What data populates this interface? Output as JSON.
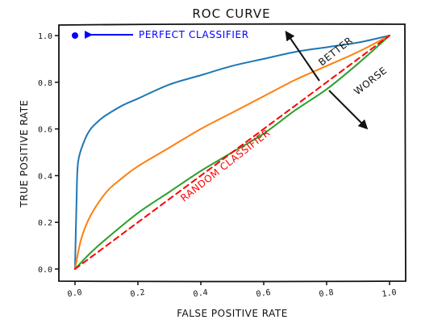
{
  "chart_data": {
    "type": "line",
    "title": "ROC CURVE",
    "xlabel": "FALSE POSITIVE RATE",
    "ylabel": "TRUE POSITIVE RATE",
    "xlim": [
      0.0,
      1.0
    ],
    "ylim": [
      0.0,
      1.0
    ],
    "xticks": [
      "0.0",
      "0.2",
      "0.4",
      "0.6",
      "0.8",
      "1.0"
    ],
    "yticks": [
      "0.0",
      "0.2",
      "0.4",
      "0.6",
      "0.8",
      "1.0"
    ],
    "grid": false,
    "series": [
      {
        "color": "#1f77b4",
        "x": [
          0.0,
          0.005,
          0.01,
          0.03,
          0.05,
          0.08,
          0.1,
          0.15,
          0.2,
          0.3,
          0.4,
          0.5,
          0.6,
          0.7,
          0.8,
          0.9,
          1.0
        ],
        "y": [
          0.0,
          0.3,
          0.46,
          0.55,
          0.6,
          0.64,
          0.66,
          0.7,
          0.73,
          0.79,
          0.83,
          0.87,
          0.9,
          0.93,
          0.95,
          0.97,
          1.0
        ]
      },
      {
        "color": "#ff7f0e",
        "x": [
          0.0,
          0.02,
          0.05,
          0.1,
          0.15,
          0.2,
          0.3,
          0.4,
          0.5,
          0.6,
          0.7,
          0.8,
          0.9,
          1.0
        ],
        "y": [
          0.0,
          0.13,
          0.23,
          0.33,
          0.39,
          0.44,
          0.52,
          0.6,
          0.67,
          0.74,
          0.81,
          0.87,
          0.93,
          1.0
        ]
      },
      {
        "color": "#2ca02c",
        "x": [
          0.0,
          0.05,
          0.1,
          0.2,
          0.3,
          0.4,
          0.5,
          0.6,
          0.7,
          0.8,
          0.9,
          1.0
        ],
        "y": [
          0.0,
          0.07,
          0.13,
          0.24,
          0.33,
          0.42,
          0.5,
          0.58,
          0.68,
          0.77,
          0.88,
          1.0
        ]
      },
      {
        "color": "#ff0000",
        "dash": true,
        "x": [
          0.0,
          1.0
        ],
        "y": [
          0.0,
          1.0
        ]
      }
    ],
    "points": [
      {
        "x": 0.0,
        "y": 1.0,
        "color": "#0000ff"
      }
    ],
    "annotations": {
      "perfect": {
        "text": "PERFECT CLASSIFIER",
        "color": "#0000ff"
      },
      "random": {
        "text": "RANDOM CLASSIFIER",
        "color": "#ff0000"
      },
      "better": {
        "text": "BETTER",
        "color": "#111111"
      },
      "worse": {
        "text": "WORSE",
        "color": "#111111"
      }
    }
  }
}
